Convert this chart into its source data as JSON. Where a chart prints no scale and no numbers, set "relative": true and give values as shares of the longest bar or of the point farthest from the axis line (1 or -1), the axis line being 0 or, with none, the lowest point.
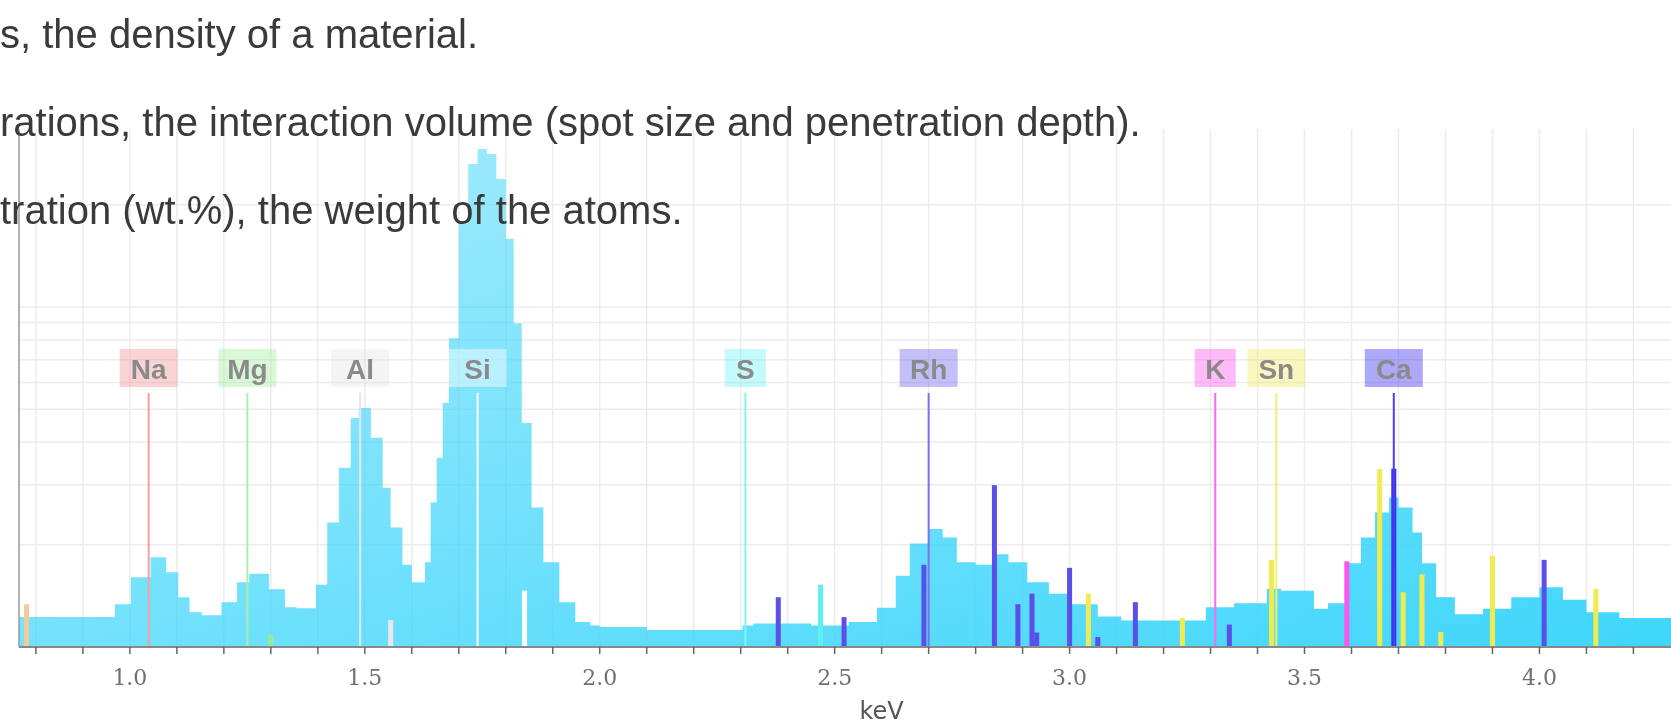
{
  "chart_data": {
    "type": "area",
    "relative": true,
    "xlabel": "keV",
    "annotations": [
      "s, the density of a material.",
      "rations, the interaction volume (spot size and penetration depth).",
      "tration (wt.%), the weight of the atoms."
    ],
    "xlim": [
      0.764,
      4.28
    ],
    "xticks": [
      {
        "value": 0.8,
        "label": null
      },
      {
        "value": 0.9,
        "label": null
      },
      {
        "value": 1.0,
        "label": "1.0"
      },
      {
        "value": 1.1,
        "label": null
      },
      {
        "value": 1.2,
        "label": null
      },
      {
        "value": 1.3,
        "label": null
      },
      {
        "value": 1.4,
        "label": null
      },
      {
        "value": 1.5,
        "label": "1.5"
      },
      {
        "value": 1.6,
        "label": null
      },
      {
        "value": 1.7,
        "label": null
      },
      {
        "value": 1.8,
        "label": null
      },
      {
        "value": 1.9,
        "label": null
      },
      {
        "value": 2.0,
        "label": "2.0"
      },
      {
        "value": 2.1,
        "label": null
      },
      {
        "value": 2.2,
        "label": null
      },
      {
        "value": 2.3,
        "label": null
      },
      {
        "value": 2.4,
        "label": null
      },
      {
        "value": 2.5,
        "label": "2.5"
      },
      {
        "value": 2.6,
        "label": null
      },
      {
        "value": 2.7,
        "label": null
      },
      {
        "value": 2.8,
        "label": null
      },
      {
        "value": 2.9,
        "label": null
      },
      {
        "value": 3.0,
        "label": "3.0"
      },
      {
        "value": 3.1,
        "label": null
      },
      {
        "value": 3.2,
        "label": null
      },
      {
        "value": 3.3,
        "label": null
      },
      {
        "value": 3.4,
        "label": null
      },
      {
        "value": 3.5,
        "label": "3.5"
      },
      {
        "value": 3.6,
        "label": null
      },
      {
        "value": 3.7,
        "label": null
      },
      {
        "value": 3.8,
        "label": null
      },
      {
        "value": 3.9,
        "label": null
      },
      {
        "value": 4.0,
        "label": "4.0"
      },
      {
        "value": 4.1,
        "label": null
      },
      {
        "value": 4.2,
        "label": null
      }
    ],
    "grid": true,
    "series": [
      {
        "color": "#3fd6fb",
        "x": [
          0.764,
          0.93,
          0.968,
          1.002,
          1.044,
          1.077,
          1.103,
          1.127,
          1.153,
          1.195,
          1.228,
          1.254,
          1.296,
          1.33,
          1.355,
          1.396,
          1.42,
          1.445,
          1.47,
          1.487,
          1.513,
          1.538,
          1.555,
          1.58,
          1.6,
          1.615,
          1.628,
          1.64,
          1.653,
          1.666,
          1.679,
          1.7,
          1.72,
          1.74,
          1.76,
          1.78,
          1.8,
          1.817,
          1.834,
          1.855,
          1.88,
          1.914,
          1.948,
          1.98,
          2.0,
          2.1,
          2.304,
          2.327,
          2.45,
          2.53,
          2.59,
          2.63,
          2.66,
          2.7,
          2.73,
          2.76,
          2.8,
          2.84,
          2.87,
          2.91,
          2.956,
          3.0,
          3.06,
          3.11,
          3.21,
          3.29,
          3.35,
          3.42,
          3.45,
          3.52,
          3.55,
          3.59,
          3.62,
          3.65,
          3.68,
          3.7,
          3.73,
          3.75,
          3.78,
          3.82,
          3.88,
          3.94,
          4.0,
          4.05,
          4.1,
          4.17,
          4.28
        ],
        "values": [
          0.06,
          0.06,
          0.086,
          0.14,
          0.18,
          0.15,
          0.1,
          0.07,
          0.064,
          0.09,
          0.13,
          0.147,
          0.116,
          0.08,
          0.078,
          0.125,
          0.25,
          0.36,
          0.46,
          0.48,
          0.42,
          0.32,
          0.24,
          0.165,
          0.13,
          0.13,
          0.17,
          0.29,
          0.38,
          0.49,
          0.62,
          0.85,
          0.97,
          1.0,
          0.99,
          0.94,
          0.82,
          0.65,
          0.45,
          0.28,
          0.17,
          0.09,
          0.05,
          0.043,
          0.04,
          0.034,
          0.043,
          0.047,
          0.043,
          0.05,
          0.079,
          0.143,
          0.208,
          0.237,
          0.22,
          0.17,
          0.165,
          0.186,
          0.17,
          0.13,
          0.107,
          0.086,
          0.061,
          0.053,
          0.053,
          0.08,
          0.088,
          0.117,
          0.113,
          0.077,
          0.088,
          0.168,
          0.22,
          0.27,
          0.3,
          0.28,
          0.23,
          0.168,
          0.1,
          0.066,
          0.077,
          0.1,
          0.12,
          0.095,
          0.07,
          0.058,
          0.058
        ]
      },
      {
        "type": "bar",
        "x": [
          0.78,
          1.3,
          1.555,
          1.84,
          2.38,
          2.47,
          2.52,
          2.69,
          2.84,
          2.89,
          2.92,
          2.93,
          3.0,
          3.04,
          3.06,
          3.14,
          3.24,
          3.34,
          3.43,
          3.59,
          3.66,
          3.69,
          3.71,
          3.75,
          3.79,
          3.9,
          4.01,
          4.12
        ],
        "values": [
          0.086,
          0.024,
          0.054,
          0.113,
          0.1,
          0.125,
          0.06,
          0.165,
          0.325,
          0.086,
          0.107,
          0.029,
          0.159,
          0.107,
          0.02,
          0.09,
          0.058,
          0.045,
          0.175,
          0.172,
          0.357,
          0.358,
          0.11,
          0.146,
          0.03,
          0.183,
          0.175,
          0.117
        ],
        "colors": [
          "#f5c9a0",
          "#9ae89a",
          "#e8e8e8",
          "#ffffff",
          "#5a4fe8",
          "#5ef0f0",
          "#5a4fe8",
          "#5a4fe8",
          "#5a4fe8",
          "#5a4fe8",
          "#5a4fe8",
          "#5a4fe8",
          "#5a4fe8",
          "#f0ec50",
          "#5a4fe8",
          "#5a4fe8",
          "#f0ec50",
          "#5a4fe8",
          "#f0ec50",
          "#ff55ee",
          "#f0ec50",
          "#3a30f0",
          "#f0ec50",
          "#f0ec50",
          "#f0ec50",
          "#f0ec50",
          "#5a4fe8",
          "#f0ec50"
        ]
      }
    ],
    "ref_lines": [
      {
        "axis": "x",
        "value": 1.04,
        "label": "Na",
        "color": "#f5a0a0"
      },
      {
        "axis": "x",
        "value": 1.25,
        "label": "Mg",
        "color": "#a8f0a8"
      },
      {
        "axis": "x",
        "value": 1.49,
        "label": "Al",
        "color": "#e6e6e6"
      },
      {
        "axis": "x",
        "value": 1.74,
        "label": "Si",
        "color": "#ffffff"
      },
      {
        "axis": "x",
        "value": 2.31,
        "label": "S",
        "color": "#7ff5f5"
      },
      {
        "axis": "x",
        "value": 2.7,
        "label": "Rh",
        "color": "#7b70f0"
      },
      {
        "axis": "x",
        "value": 3.31,
        "label": "K",
        "color": "#ff66ee"
      },
      {
        "axis": "x",
        "value": 3.44,
        "label": "Sn",
        "color": "#f2ee70"
      },
      {
        "axis": "x",
        "value": 3.69,
        "label": "Ca",
        "color": "#4a40f0"
      }
    ]
  }
}
